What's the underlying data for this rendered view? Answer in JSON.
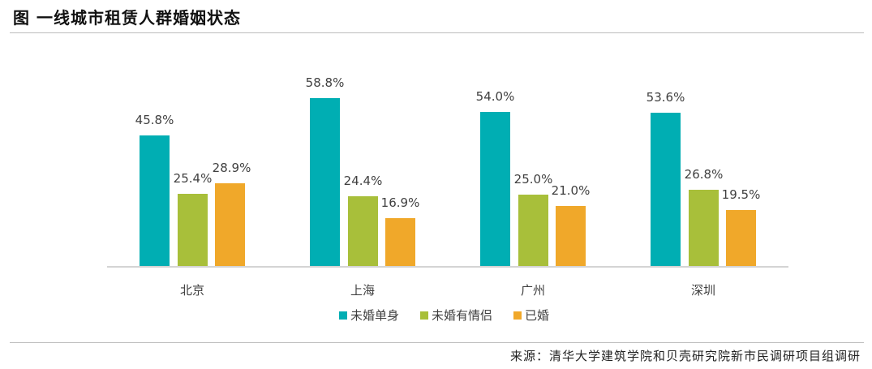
{
  "header": {
    "title": "图  一线城市租赁人群婚姻状态"
  },
  "footer": {
    "source": "来源：清华大学建筑学院和贝壳研究院新市民调研项目组调研"
  },
  "colors": {
    "single": "#00AEB3",
    "partner": "#A8BF3A",
    "married": "#F0A82A"
  },
  "chart_data": {
    "type": "bar",
    "title": "一线城市租赁人群婚姻状态",
    "categories": [
      "北京",
      "上海",
      "广州",
      "深圳"
    ],
    "series": [
      {
        "name": "未婚单身",
        "values": [
          45.8,
          58.8,
          54.0,
          53.6
        ],
        "labels": [
          "45.8%",
          "58.8%",
          "54.0%",
          "53.6%"
        ]
      },
      {
        "name": "未婚有情侣",
        "values": [
          25.4,
          24.4,
          25.0,
          26.8
        ],
        "labels": [
          "25.4%",
          "24.4%",
          "25.0%",
          "26.8%"
        ]
      },
      {
        "name": "已婚",
        "values": [
          28.9,
          16.9,
          21.0,
          19.5
        ],
        "labels": [
          "28.9%",
          "16.9%",
          "21.0%",
          "19.5%"
        ]
      }
    ],
    "xlabel": "",
    "ylabel": "",
    "unit": "%",
    "ylim": [
      0,
      65
    ],
    "grid": false,
    "y_axis_visible": false,
    "legend_position": "bottom"
  }
}
